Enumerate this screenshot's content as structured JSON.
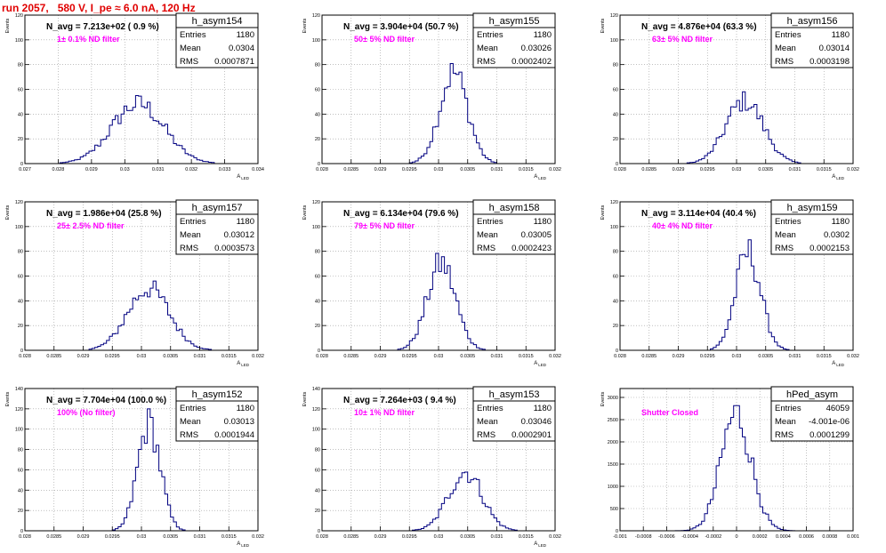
{
  "page_title": "run 2057,   580 V, I_pe ≈ 6.0 nA, 120 Hz",
  "chart_data": [
    {
      "type": "bar",
      "name": "h_asym154",
      "stats": {
        "entries": "1180",
        "mean": "0.0304",
        "rms": "0.0007871"
      },
      "annotation": "N_avg = 7.213e+02 ( 0.9 %)",
      "filter": "1± 0.1% ND filter",
      "xlabel": "A_LED",
      "ylabel": "Events",
      "xlim": [
        0.027,
        0.034
      ],
      "ylim": [
        0,
        120
      ],
      "xticks": [
        "0.027",
        "0.028",
        "0.029",
        "0.03",
        "0.031",
        "0.032",
        "0.033",
        "0.034"
      ],
      "yticks": [
        "0",
        "20",
        "40",
        "60",
        "80",
        "100",
        "120"
      ],
      "hist": {
        "mean": 0.0304,
        "rms": 0.0007871,
        "peak": 55
      }
    },
    {
      "type": "bar",
      "name": "h_asym155",
      "stats": {
        "entries": "1180",
        "mean": "0.03026",
        "rms": "0.0002402"
      },
      "annotation": "N_avg = 3.904e+04 (50.7 %)",
      "filter": "50± 5% ND filter",
      "xlabel": "A_LED",
      "ylabel": "Events",
      "xlim": [
        0.028,
        0.032
      ],
      "ylim": [
        0,
        120
      ],
      "xticks": [
        "0.028",
        "0.0285",
        "0.029",
        "0.0295",
        "0.03",
        "0.0305",
        "0.031",
        "0.0315",
        "0.032"
      ],
      "yticks": [
        "0",
        "20",
        "40",
        "60",
        "80",
        "100",
        "120"
      ],
      "hist": {
        "mean": 0.03026,
        "rms": 0.0002402,
        "peak": 84
      }
    },
    {
      "type": "bar",
      "name": "h_asym156",
      "stats": {
        "entries": "1180",
        "mean": "0.03014",
        "rms": "0.0003198"
      },
      "annotation": "N_avg = 4.876e+04 (63.3 %)",
      "filter": "63± 5% ND filter",
      "xlabel": "A_LED",
      "ylabel": "Events",
      "xlim": [
        0.028,
        0.032
      ],
      "ylim": [
        0,
        120
      ],
      "xticks": [
        "0.028",
        "0.0285",
        "0.029",
        "0.0295",
        "0.03",
        "0.0305",
        "0.031",
        "0.0315",
        "0.032"
      ],
      "yticks": [
        "0",
        "20",
        "40",
        "60",
        "80",
        "100",
        "120"
      ],
      "hist": {
        "mean": 0.03014,
        "rms": 0.0003198,
        "peak": 58
      }
    },
    {
      "type": "bar",
      "name": "h_asym157",
      "stats": {
        "entries": "1180",
        "mean": "0.03012",
        "rms": "0.0003573"
      },
      "annotation": "N_avg = 1.986e+04 (25.8 %)",
      "filter": "25± 2.5% ND filter",
      "xlabel": "A_LED",
      "ylabel": "Events",
      "xlim": [
        0.028,
        0.032
      ],
      "ylim": [
        0,
        120
      ],
      "xticks": [
        "0.028",
        "0.0285",
        "0.029",
        "0.0295",
        "0.03",
        "0.0305",
        "0.031",
        "0.0315",
        "0.032"
      ],
      "yticks": [
        "0",
        "20",
        "40",
        "60",
        "80",
        "100",
        "120"
      ],
      "hist": {
        "mean": 0.03012,
        "rms": 0.0003573,
        "peak": 57
      }
    },
    {
      "type": "bar",
      "name": "h_asym158",
      "stats": {
        "entries": "1180",
        "mean": "0.03005",
        "rms": "0.0002423"
      },
      "annotation": "N_avg = 6.134e+04 (79.6 %)",
      "filter": "79± 5% ND filter",
      "xlabel": "A_LED",
      "ylabel": "Events",
      "xlim": [
        0.028,
        0.032
      ],
      "ylim": [
        0,
        120
      ],
      "xticks": [
        "0.028",
        "0.0285",
        "0.029",
        "0.0295",
        "0.03",
        "0.0305",
        "0.031",
        "0.0315",
        "0.032"
      ],
      "yticks": [
        "0",
        "20",
        "40",
        "60",
        "80",
        "100",
        "120"
      ],
      "hist": {
        "mean": 0.03005,
        "rms": 0.0002423,
        "peak": 80
      }
    },
    {
      "type": "bar",
      "name": "h_asym159",
      "stats": {
        "entries": "1180",
        "mean": "0.0302",
        "rms": "0.0002153"
      },
      "annotation": "N_avg = 3.114e+04 (40.4 %)",
      "filter": "40± 4% ND filter",
      "xlabel": "A_LED",
      "ylabel": "Events",
      "xlim": [
        0.028,
        0.032
      ],
      "ylim": [
        0,
        120
      ],
      "xticks": [
        "0.028",
        "0.0285",
        "0.029",
        "0.0295",
        "0.03",
        "0.0305",
        "0.031",
        "0.0315",
        "0.032"
      ],
      "yticks": [
        "0",
        "20",
        "40",
        "60",
        "80",
        "100",
        "120"
      ],
      "hist": {
        "mean": 0.0302,
        "rms": 0.0002153,
        "peak": 90
      }
    },
    {
      "type": "bar",
      "name": "h_asym152",
      "stats": {
        "entries": "1180",
        "mean": "0.03013",
        "rms": "0.0001944"
      },
      "annotation": "N_avg = 7.704e+04 (100.0 %)",
      "filter": "100% (No filter)",
      "xlabel": "A_LED",
      "ylabel": "Events",
      "xlim": [
        0.028,
        0.032
      ],
      "ylim": [
        0,
        140
      ],
      "xticks": [
        "0.028",
        "0.0285",
        "0.029",
        "0.0295",
        "0.03",
        "0.0305",
        "0.031",
        "0.0315",
        "0.032"
      ],
      "yticks": [
        "0",
        "20",
        "40",
        "60",
        "80",
        "100",
        "120",
        "140"
      ],
      "hist": {
        "mean": 0.03013,
        "rms": 0.0001944,
        "peak": 120
      }
    },
    {
      "type": "bar",
      "name": "h_asym153",
      "stats": {
        "entries": "1180",
        "mean": "0.03046",
        "rms": "0.0002901"
      },
      "annotation": "N_avg = 7.264e+03 ( 9.4 %)",
      "filter": "10± 1% ND filter",
      "xlabel": "A_LED",
      "ylabel": "Events",
      "xlim": [
        0.028,
        0.032
      ],
      "ylim": [
        0,
        140
      ],
      "xticks": [
        "0.028",
        "0.0285",
        "0.029",
        "0.0295",
        "0.03",
        "0.0305",
        "0.031",
        "0.0315",
        "0.032"
      ],
      "yticks": [
        "0",
        "20",
        "40",
        "60",
        "80",
        "100",
        "120",
        "140"
      ],
      "hist": {
        "mean": 0.03046,
        "rms": 0.0002901,
        "peak": 66
      }
    },
    {
      "type": "bar",
      "name": "hPed_asym",
      "stats": {
        "entries": "46059",
        "mean": "-4.001e-06",
        "rms": "0.0001299"
      },
      "annotation": "",
      "filter": "Shutter Closed",
      "xlabel": "",
      "ylabel": "Events",
      "xlim": [
        -0.001,
        0.001
      ],
      "ylim": [
        0,
        3200
      ],
      "xticks": [
        "-0.001",
        "-0.0008",
        "-0.0006",
        "-0.0004",
        "-0.0002",
        "0",
        "0.0002",
        "0.0004",
        "0.0006",
        "0.0008",
        "0.001"
      ],
      "yticks": [
        "0",
        "500",
        "1000",
        "1500",
        "2000",
        "2500",
        "3000"
      ],
      "hist": {
        "mean": -4e-06,
        "rms": 0.0001299,
        "peak": 3000
      }
    }
  ]
}
